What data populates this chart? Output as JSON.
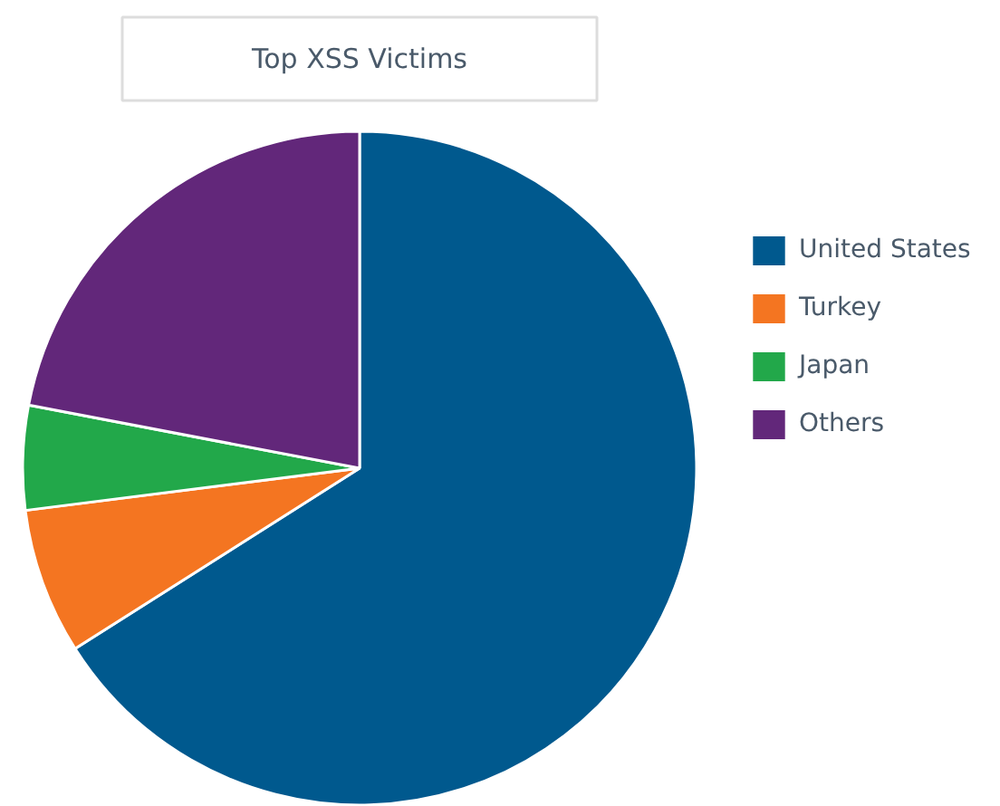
{
  "chart_data": {
    "type": "pie",
    "title": "Top XSS Victims",
    "categories": [
      "United States",
      "Turkey",
      "Japan",
      "Others"
    ],
    "values": [
      66,
      7,
      5,
      22
    ],
    "colors": [
      "#00598e",
      "#f47521",
      "#22a84a",
      "#62277a"
    ],
    "legend": "right"
  }
}
